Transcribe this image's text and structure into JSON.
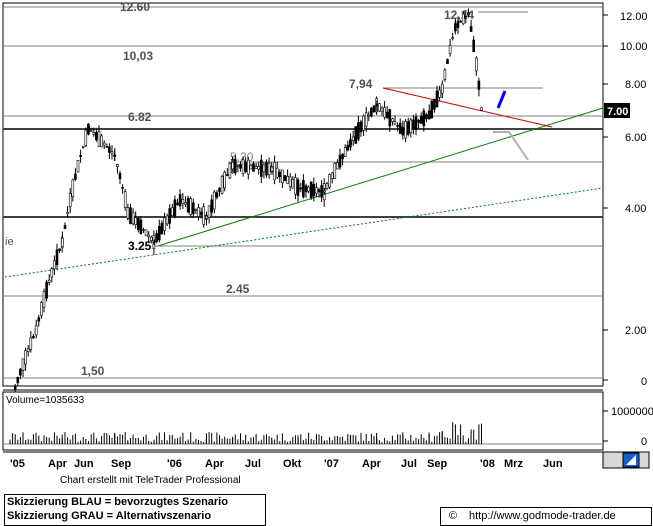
{
  "chart_data": {
    "type": "candlestick",
    "price_axis": {
      "scale": "log",
      "ticks": [
        "12.00",
        "10.00",
        "8.00",
        "6.00",
        "4.00",
        "2.00",
        "0"
      ],
      "last_price_label": "7.00"
    },
    "volume_axis": {
      "ticks": [
        "1000000",
        "0"
      ],
      "label": "Volume=1035633"
    },
    "x_ticks": [
      "'05",
      "Apr",
      "Jun",
      "Sep",
      "'06",
      "Apr",
      "Jul",
      "Okt",
      "'07",
      "Apr",
      "Jul",
      "Sep",
      "'08",
      "Mrz",
      "Jun"
    ],
    "levels": [
      "12.60",
      "12,14",
      "10,03",
      "7,94",
      "6.82",
      "5.20",
      "3.25",
      "2.45",
      "1,50"
    ],
    "side_text": "ie",
    "overview": [
      {
        "date": "2005-01",
        "price": 1.3
      },
      {
        "date": "2005-03",
        "price": 2.0
      },
      {
        "date": "2005-05",
        "price": 3.3
      },
      {
        "date": "2005-07",
        "price": 6.3
      },
      {
        "date": "2005-09",
        "price": 5.4
      },
      {
        "date": "2005-10",
        "price": 3.9
      },
      {
        "date": "2005-12",
        "price": 3.3
      },
      {
        "date": "2006-02",
        "price": 4.2
      },
      {
        "date": "2006-04",
        "price": 3.8
      },
      {
        "date": "2006-06",
        "price": 5.1
      },
      {
        "date": "2006-09",
        "price": 5.0
      },
      {
        "date": "2006-11",
        "price": 4.5
      },
      {
        "date": "2007-01",
        "price": 4.4
      },
      {
        "date": "2007-03",
        "price": 5.8
      },
      {
        "date": "2007-05",
        "price": 7.2
      },
      {
        "date": "2007-07",
        "price": 6.2
      },
      {
        "date": "2007-09",
        "price": 6.8
      },
      {
        "date": "2007-10",
        "price": 7.9
      },
      {
        "date": "2007-11",
        "price": 11.2
      },
      {
        "date": "2007-12",
        "price": 12.1
      },
      {
        "date": "2008-01",
        "price": 7.0
      }
    ]
  },
  "footer": {
    "credit": "Chart erstellt mit TeleTrader Professional",
    "legend_blue": "Skizzierung BLAU = bevorzugtes Szenario",
    "legend_gray": "Skizzierung GRAU = Alternativszenario",
    "copyright_symbol": "©",
    "url": "http://www.godmode-trader.de"
  },
  "colors": {
    "support_line": "#008000",
    "resistance_line": "#cc0000",
    "scenario_blue": "#0000ff",
    "scenario_gray": "#b0b0b0",
    "price_tag_bg": "#000000",
    "scrollbar_button": "#1060d0"
  }
}
